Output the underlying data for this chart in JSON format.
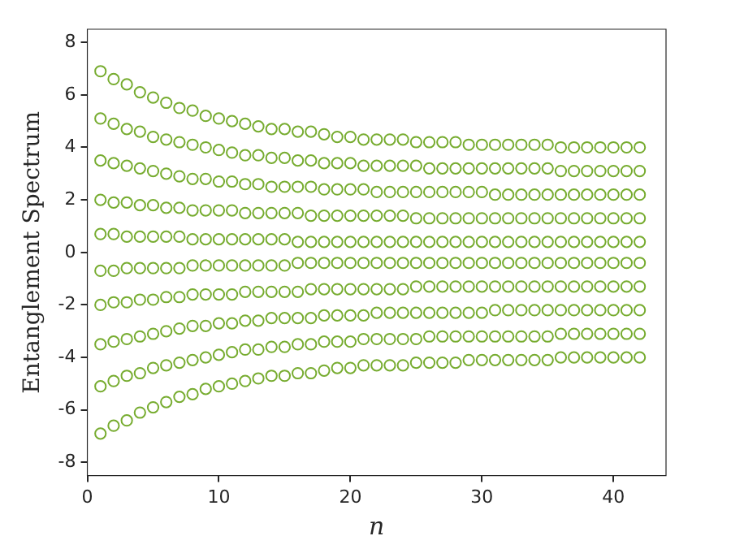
{
  "chart_data": {
    "type": "scatter",
    "xlabel": "n",
    "ylabel": "Entanglement Spectrum",
    "marker": "circle",
    "grid": false,
    "legend": false,
    "xlim": [
      0,
      44
    ],
    "xticks": [
      0,
      10,
      20,
      30,
      40
    ],
    "ylim": [
      -8.5,
      8.5
    ],
    "yticks": [
      -8,
      -6,
      -4,
      -2,
      0,
      2,
      4,
      6,
      8
    ],
    "x": [
      1,
      2,
      3,
      4,
      5,
      6,
      7,
      8,
      9,
      10,
      11,
      12,
      13,
      14,
      15,
      16,
      17,
      18,
      19,
      20,
      21,
      22,
      23,
      24,
      25,
      26,
      27,
      28,
      29,
      30,
      31,
      32,
      33,
      34,
      35,
      36,
      37,
      38,
      39,
      40,
      41,
      42
    ],
    "series": [
      {
        "color": "#77ac30",
        "values": [
          6.9,
          6.6,
          6.4,
          6.1,
          5.9,
          5.7,
          5.5,
          5.4,
          5.2,
          5.1,
          5.0,
          4.9,
          4.8,
          4.7,
          4.7,
          4.6,
          4.6,
          4.5,
          4.4,
          4.4,
          4.3,
          4.3,
          4.3,
          4.3,
          4.2,
          4.2,
          4.2,
          4.2,
          4.1,
          4.1,
          4.1,
          4.1,
          4.1,
          4.1,
          4.1,
          4.0,
          4.0,
          4.0,
          4.0,
          4.0,
          4.0,
          4.0
        ]
      },
      {
        "color": "#77ac30",
        "values": [
          5.1,
          4.9,
          4.7,
          4.6,
          4.4,
          4.3,
          4.2,
          4.1,
          4.0,
          3.9,
          3.8,
          3.7,
          3.7,
          3.6,
          3.6,
          3.5,
          3.5,
          3.4,
          3.4,
          3.4,
          3.3,
          3.3,
          3.3,
          3.3,
          3.3,
          3.2,
          3.2,
          3.2,
          3.2,
          3.2,
          3.2,
          3.2,
          3.2,
          3.2,
          3.2,
          3.1,
          3.1,
          3.1,
          3.1,
          3.1,
          3.1,
          3.1
        ]
      },
      {
        "color": "#77ac30",
        "values": [
          3.5,
          3.4,
          3.3,
          3.2,
          3.1,
          3.0,
          2.9,
          2.8,
          2.8,
          2.7,
          2.7,
          2.6,
          2.6,
          2.5,
          2.5,
          2.5,
          2.5,
          2.4,
          2.4,
          2.4,
          2.4,
          2.3,
          2.3,
          2.3,
          2.3,
          2.3,
          2.3,
          2.3,
          2.3,
          2.3,
          2.2,
          2.2,
          2.2,
          2.2,
          2.2,
          2.2,
          2.2,
          2.2,
          2.2,
          2.2,
          2.2,
          2.2
        ]
      },
      {
        "color": "#77ac30",
        "values": [
          2.0,
          1.9,
          1.9,
          1.8,
          1.8,
          1.7,
          1.7,
          1.6,
          1.6,
          1.6,
          1.6,
          1.5,
          1.5,
          1.5,
          1.5,
          1.5,
          1.4,
          1.4,
          1.4,
          1.4,
          1.4,
          1.4,
          1.4,
          1.4,
          1.3,
          1.3,
          1.3,
          1.3,
          1.3,
          1.3,
          1.3,
          1.3,
          1.3,
          1.3,
          1.3,
          1.3,
          1.3,
          1.3,
          1.3,
          1.3,
          1.3,
          1.3
        ]
      },
      {
        "color": "#77ac30",
        "values": [
          0.7,
          0.7,
          0.6,
          0.6,
          0.6,
          0.6,
          0.6,
          0.5,
          0.5,
          0.5,
          0.5,
          0.5,
          0.5,
          0.5,
          0.5,
          0.4,
          0.4,
          0.4,
          0.4,
          0.4,
          0.4,
          0.4,
          0.4,
          0.4,
          0.4,
          0.4,
          0.4,
          0.4,
          0.4,
          0.4,
          0.4,
          0.4,
          0.4,
          0.4,
          0.4,
          0.4,
          0.4,
          0.4,
          0.4,
          0.4,
          0.4,
          0.4
        ]
      },
      {
        "color": "#77ac30",
        "values": [
          -0.7,
          -0.7,
          -0.6,
          -0.6,
          -0.6,
          -0.6,
          -0.6,
          -0.5,
          -0.5,
          -0.5,
          -0.5,
          -0.5,
          -0.5,
          -0.5,
          -0.5,
          -0.4,
          -0.4,
          -0.4,
          -0.4,
          -0.4,
          -0.4,
          -0.4,
          -0.4,
          -0.4,
          -0.4,
          -0.4,
          -0.4,
          -0.4,
          -0.4,
          -0.4,
          -0.4,
          -0.4,
          -0.4,
          -0.4,
          -0.4,
          -0.4,
          -0.4,
          -0.4,
          -0.4,
          -0.4,
          -0.4,
          -0.4
        ]
      },
      {
        "color": "#77ac30",
        "values": [
          -2.0,
          -1.9,
          -1.9,
          -1.8,
          -1.8,
          -1.7,
          -1.7,
          -1.6,
          -1.6,
          -1.6,
          -1.6,
          -1.5,
          -1.5,
          -1.5,
          -1.5,
          -1.5,
          -1.4,
          -1.4,
          -1.4,
          -1.4,
          -1.4,
          -1.4,
          -1.4,
          -1.4,
          -1.3,
          -1.3,
          -1.3,
          -1.3,
          -1.3,
          -1.3,
          -1.3,
          -1.3,
          -1.3,
          -1.3,
          -1.3,
          -1.3,
          -1.3,
          -1.3,
          -1.3,
          -1.3,
          -1.3,
          -1.3
        ]
      },
      {
        "color": "#77ac30",
        "values": [
          -3.5,
          -3.4,
          -3.3,
          -3.2,
          -3.1,
          -3.0,
          -2.9,
          -2.8,
          -2.8,
          -2.7,
          -2.7,
          -2.6,
          -2.6,
          -2.5,
          -2.5,
          -2.5,
          -2.5,
          -2.4,
          -2.4,
          -2.4,
          -2.4,
          -2.3,
          -2.3,
          -2.3,
          -2.3,
          -2.3,
          -2.3,
          -2.3,
          -2.3,
          -2.3,
          -2.2,
          -2.2,
          -2.2,
          -2.2,
          -2.2,
          -2.2,
          -2.2,
          -2.2,
          -2.2,
          -2.2,
          -2.2,
          -2.2
        ]
      },
      {
        "color": "#77ac30",
        "values": [
          -5.1,
          -4.9,
          -4.7,
          -4.6,
          -4.4,
          -4.3,
          -4.2,
          -4.1,
          -4.0,
          -3.9,
          -3.8,
          -3.7,
          -3.7,
          -3.6,
          -3.6,
          -3.5,
          -3.5,
          -3.4,
          -3.4,
          -3.4,
          -3.3,
          -3.3,
          -3.3,
          -3.3,
          -3.3,
          -3.2,
          -3.2,
          -3.2,
          -3.2,
          -3.2,
          -3.2,
          -3.2,
          -3.2,
          -3.2,
          -3.2,
          -3.1,
          -3.1,
          -3.1,
          -3.1,
          -3.1,
          -3.1,
          -3.1
        ]
      },
      {
        "color": "#77ac30",
        "values": [
          -6.9,
          -6.6,
          -6.4,
          -6.1,
          -5.9,
          -5.7,
          -5.5,
          -5.4,
          -5.2,
          -5.1,
          -5.0,
          -4.9,
          -4.8,
          -4.7,
          -4.7,
          -4.6,
          -4.6,
          -4.5,
          -4.4,
          -4.4,
          -4.3,
          -4.3,
          -4.3,
          -4.3,
          -4.2,
          -4.2,
          -4.2,
          -4.2,
          -4.1,
          -4.1,
          -4.1,
          -4.1,
          -4.1,
          -4.1,
          -4.1,
          -4.0,
          -4.0,
          -4.0,
          -4.0,
          -4.0,
          -4.0,
          -4.0
        ]
      }
    ]
  }
}
